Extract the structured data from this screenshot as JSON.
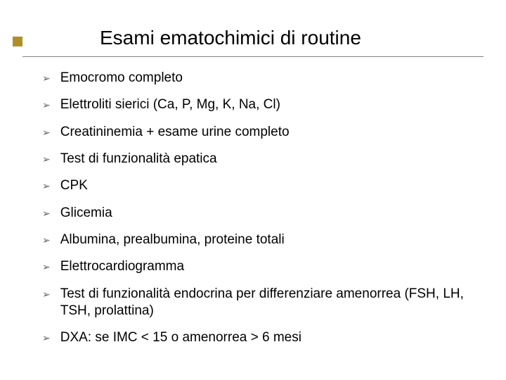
{
  "title": "Esami ematochimici di routine",
  "bullet_glyph": "➢",
  "items": [
    "Emocromo completo",
    "Elettroliti sierici (Ca, P, Mg, K, Na, Cl)",
    "Creatininemia + esame urine completo",
    "Test di funzionalità epatica",
    "CPK",
    "Glicemia",
    "Albumina, prealbumina, proteine totali",
    "Elettrocardiogramma",
    "Test di funzionalità endocrina per differenziare amenorrea (FSH, LH, TSH, prolattina)",
    "DXA: se IMC < 15 o amenorrea > 6 mesi"
  ],
  "colors": {
    "accent": "#b08f26",
    "rule": "#808080",
    "bullet": "#5f5f5f",
    "text": "#000000",
    "background": "#ffffff"
  },
  "fontsize": {
    "title": 28,
    "item": 19
  }
}
